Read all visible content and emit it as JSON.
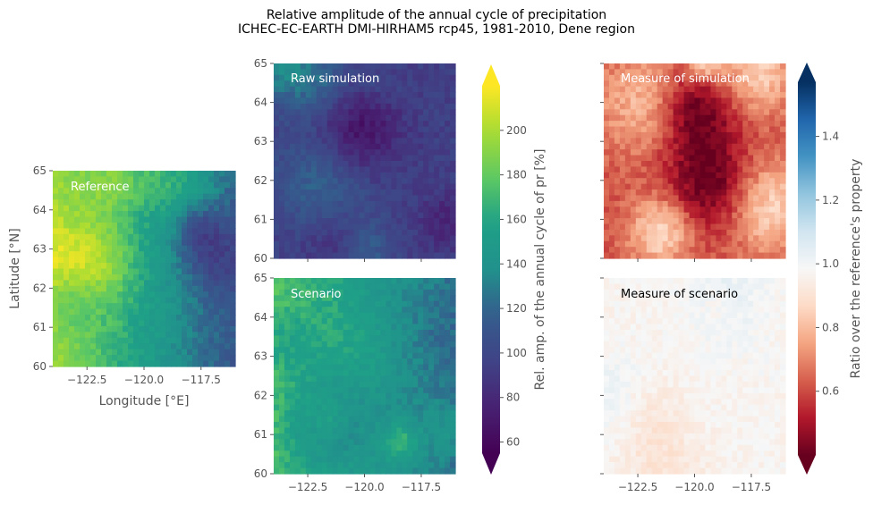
{
  "title_line1": "Relative amplitude of the annual cycle of precipitation",
  "title_line2": "ICHEC-EC-EARTH DMI-HIRHAM5 rcp45, 1981-2010, Dene region",
  "chart_data": {
    "type": "heatmap",
    "xlabel": "Longitude [°E]",
    "ylabel": "Latitude [°N]",
    "xlim": [
      -124,
      -116
    ],
    "ylim": [
      60,
      65
    ],
    "x_ticks": [
      "−122.5",
      "−120.0",
      "−117.5"
    ],
    "y_ticks": [
      "60",
      "61",
      "62",
      "63",
      "64",
      "65"
    ],
    "panels": [
      {
        "label": "Reference",
        "label_color": "#ffffff",
        "colormap": "viridis",
        "vmin": 55,
        "vmax": 220,
        "mean_value": 155
      },
      {
        "label": "Raw simulation",
        "label_color": "#ffffff",
        "colormap": "viridis",
        "vmin": 55,
        "vmax": 220,
        "mean_value": 95
      },
      {
        "label": "Scenario",
        "label_color": "#ffffff",
        "colormap": "viridis",
        "vmin": 55,
        "vmax": 220,
        "mean_value": 150
      },
      {
        "label": "Measure of simulation",
        "label_color": "#ffffff",
        "colormap": "RdBu",
        "vmin": 0.4,
        "vmax": 1.57,
        "mean_value": 0.62
      },
      {
        "label": "Measure of scenario",
        "label_color": "#000000",
        "colormap": "RdBu",
        "vmin": 0.4,
        "vmax": 1.57,
        "mean_value": 0.97
      }
    ],
    "colorbars": [
      {
        "label": "Rel. amp. of the annual cycle of pr [%]",
        "ticks": [
          "60",
          "80",
          "100",
          "120",
          "140",
          "160",
          "180",
          "200"
        ],
        "tick_values": [
          60,
          80,
          100,
          120,
          140,
          160,
          180,
          200
        ],
        "vmin": 55,
        "vmax": 220,
        "colormap": "viridis"
      },
      {
        "label": "Ratio over the reference's property",
        "ticks": [
          "0.6",
          "0.8",
          "1.0",
          "1.2",
          "1.4"
        ],
        "tick_values": [
          0.6,
          0.8,
          1.0,
          1.2,
          1.4
        ],
        "vmin": 0.4,
        "vmax": 1.57,
        "colormap": "RdBu"
      }
    ]
  }
}
